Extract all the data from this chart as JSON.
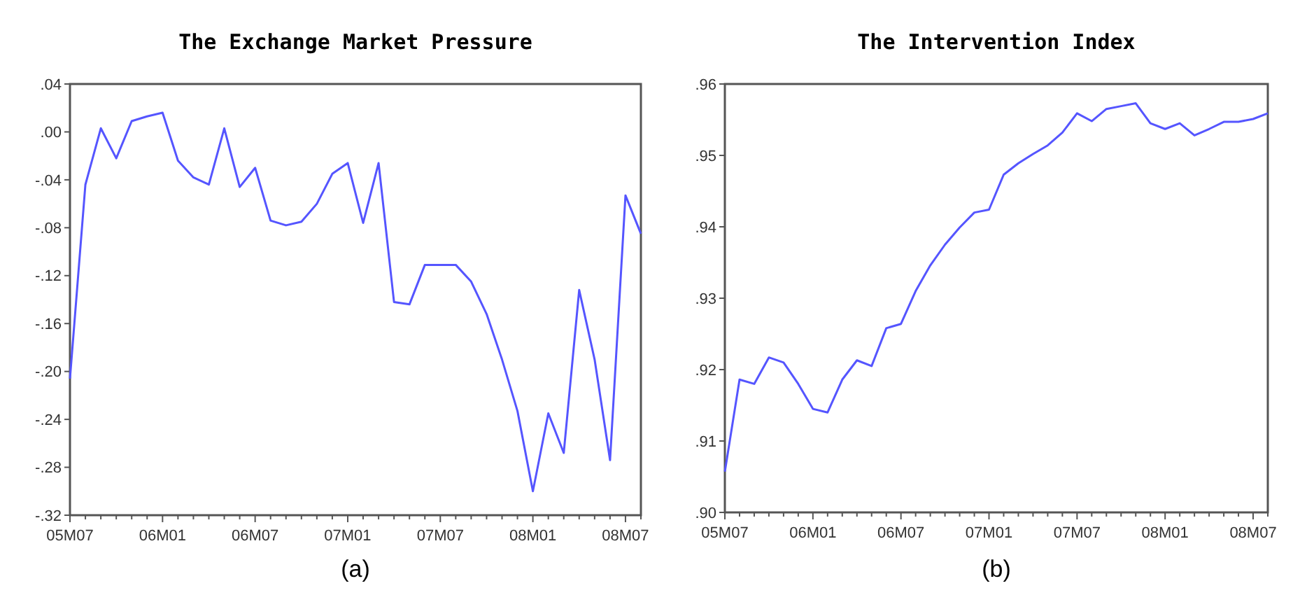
{
  "chart_data": [
    {
      "type": "line",
      "title": "The Exchange Market Pressure",
      "annotations": [
        "(a)"
      ],
      "categories": [
        "05M07",
        null,
        null,
        null,
        null,
        null,
        "06M01",
        null,
        null,
        null,
        null,
        null,
        "06M07",
        null,
        null,
        null,
        null,
        null,
        "07M01",
        null,
        null,
        null,
        null,
        null,
        "07M07",
        null,
        null,
        null,
        null,
        null,
        "08M01",
        null,
        null,
        null,
        null,
        null,
        "08M07",
        null
      ],
      "series": [
        {
          "color": "#5555ff",
          "values": [
            -0.206,
            -0.044,
            0.003,
            -0.022,
            0.009,
            0.013,
            0.016,
            -0.024,
            -0.038,
            -0.044,
            0.003,
            -0.046,
            -0.03,
            -0.074,
            -0.078,
            -0.075,
            -0.06,
            -0.035,
            -0.026,
            -0.076,
            -0.026,
            -0.142,
            -0.144,
            -0.111,
            -0.111,
            -0.111,
            -0.125,
            -0.152,
            -0.19,
            -0.233,
            -0.3,
            -0.235,
            -0.268,
            -0.132,
            -0.19,
            -0.274,
            -0.053,
            -0.085
          ]
        }
      ],
      "ylim": [
        -0.32,
        0.04
      ],
      "yticks": [
        {
          "value": 0.04,
          "label": ".04"
        },
        {
          "value": 0,
          "label": ".00"
        },
        {
          "value": -0.04,
          "label": "-.04"
        },
        {
          "value": -0.08,
          "label": "-.08"
        },
        {
          "value": -0.12,
          "label": "-.12"
        },
        {
          "value": -0.16,
          "label": "-.16"
        },
        {
          "value": -0.2,
          "label": "-.20"
        },
        {
          "value": -0.24,
          "label": "-.24"
        },
        {
          "value": -0.28,
          "label": "-.28"
        },
        {
          "value": -0.32,
          "label": "-.32"
        }
      ],
      "grid": false
    },
    {
      "type": "line",
      "title": "The Intervention Index",
      "annotations": [
        "(b)"
      ],
      "categories": [
        "05M07",
        null,
        null,
        null,
        null,
        null,
        "06M01",
        null,
        null,
        null,
        null,
        null,
        "06M07",
        null,
        null,
        null,
        null,
        null,
        "07M01",
        null,
        null,
        null,
        null,
        null,
        "07M07",
        null,
        null,
        null,
        null,
        null,
        "08M01",
        null,
        null,
        null,
        null,
        null,
        "08M07",
        null
      ],
      "series": [
        {
          "color": "#5555ff",
          "values": [
            0.9057,
            0.9186,
            0.918,
            0.9217,
            0.921,
            0.918,
            0.9145,
            0.914,
            0.9186,
            0.9213,
            0.9205,
            0.9258,
            0.9264,
            0.931,
            0.9346,
            0.9375,
            0.9399,
            0.942,
            0.9424,
            0.9473,
            0.9489,
            0.9502,
            0.9514,
            0.9532,
            0.9559,
            0.9548,
            0.9565,
            0.9569,
            0.9573,
            0.9545,
            0.9537,
            0.9545,
            0.9528,
            0.9537,
            0.9547,
            0.9547,
            0.9551,
            0.9559
          ]
        }
      ],
      "ylim": [
        0.9,
        0.96
      ],
      "yticks": [
        {
          "value": 0.9,
          "label": ".90"
        },
        {
          "value": 0.91,
          "label": ".91"
        },
        {
          "value": 0.92,
          "label": ".92"
        },
        {
          "value": 0.93,
          "label": ".93"
        },
        {
          "value": 0.94,
          "label": ".94"
        },
        {
          "value": 0.95,
          "label": ".95"
        },
        {
          "value": 0.96,
          "label": ".96"
        }
      ],
      "grid": false
    }
  ]
}
